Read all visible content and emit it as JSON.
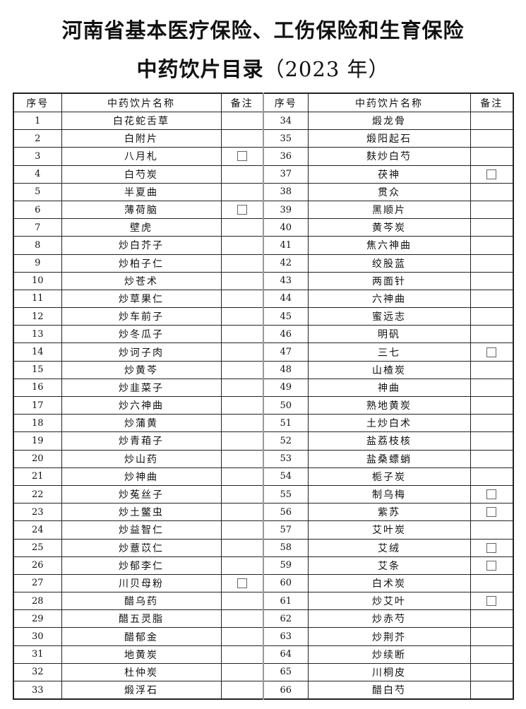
{
  "title": {
    "line1": "河南省基本医疗保险、工伤保险和生育保险",
    "line2": "中药饮片目录",
    "year": "（2023 年）"
  },
  "headers": {
    "no": "序号",
    "name": "中药饮片名称",
    "remark": "备注"
  },
  "left_rows": [
    {
      "no": "1",
      "name": "白花蛇舌草",
      "checkbox": false
    },
    {
      "no": "2",
      "name": "白附片",
      "checkbox": false
    },
    {
      "no": "3",
      "name": "八月札",
      "checkbox": true
    },
    {
      "no": "4",
      "name": "白芍炭",
      "checkbox": false
    },
    {
      "no": "5",
      "name": "半夏曲",
      "checkbox": false
    },
    {
      "no": "6",
      "name": "薄荷脑",
      "checkbox": true
    },
    {
      "no": "7",
      "name": "壁虎",
      "checkbox": false
    },
    {
      "no": "8",
      "name": "炒白芥子",
      "checkbox": false
    },
    {
      "no": "9",
      "name": "炒柏子仁",
      "checkbox": false
    },
    {
      "no": "10",
      "name": "炒苍术",
      "checkbox": false
    },
    {
      "no": "11",
      "name": "炒草果仁",
      "checkbox": false
    },
    {
      "no": "12",
      "name": "炒车前子",
      "checkbox": false
    },
    {
      "no": "13",
      "name": "炒冬瓜子",
      "checkbox": false
    },
    {
      "no": "14",
      "name": "炒诃子肉",
      "checkbox": false
    },
    {
      "no": "15",
      "name": "炒黄芩",
      "checkbox": false
    },
    {
      "no": "16",
      "name": "炒韭菜子",
      "checkbox": false
    },
    {
      "no": "17",
      "name": "炒六神曲",
      "checkbox": false
    },
    {
      "no": "18",
      "name": "炒蒲黄",
      "checkbox": false
    },
    {
      "no": "19",
      "name": "炒青葙子",
      "checkbox": false
    },
    {
      "no": "20",
      "name": "炒山药",
      "checkbox": false
    },
    {
      "no": "21",
      "name": "炒神曲",
      "checkbox": false
    },
    {
      "no": "22",
      "name": "炒菟丝子",
      "checkbox": false
    },
    {
      "no": "23",
      "name": "炒土鳖虫",
      "checkbox": false
    },
    {
      "no": "24",
      "name": "炒益智仁",
      "checkbox": false
    },
    {
      "no": "25",
      "name": "炒薏苡仁",
      "checkbox": false
    },
    {
      "no": "26",
      "name": "炒郁李仁",
      "checkbox": false
    },
    {
      "no": "27",
      "name": "川贝母粉",
      "checkbox": true
    },
    {
      "no": "28",
      "name": "醋乌药",
      "checkbox": false
    },
    {
      "no": "29",
      "name": "醋五灵脂",
      "checkbox": false
    },
    {
      "no": "30",
      "name": "醋郁金",
      "checkbox": false
    },
    {
      "no": "31",
      "name": "地黄炭",
      "checkbox": false
    },
    {
      "no": "32",
      "name": "杜仲炭",
      "checkbox": false
    },
    {
      "no": "33",
      "name": "煅浮石",
      "checkbox": false
    }
  ],
  "right_rows": [
    {
      "no": "34",
      "name": "煅龙骨",
      "checkbox": false
    },
    {
      "no": "35",
      "name": "煅阳起石",
      "checkbox": false
    },
    {
      "no": "36",
      "name": "麸炒白芍",
      "checkbox": false
    },
    {
      "no": "37",
      "name": "茯神",
      "checkbox": true
    },
    {
      "no": "38",
      "name": "贯众",
      "checkbox": false
    },
    {
      "no": "39",
      "name": "黑顺片",
      "checkbox": false
    },
    {
      "no": "40",
      "name": "黄芩炭",
      "checkbox": false
    },
    {
      "no": "41",
      "name": "焦六神曲",
      "checkbox": false
    },
    {
      "no": "42",
      "name": "绞股蓝",
      "checkbox": false
    },
    {
      "no": "43",
      "name": "两面针",
      "checkbox": false
    },
    {
      "no": "44",
      "name": "六神曲",
      "checkbox": false
    },
    {
      "no": "45",
      "name": "蜜远志",
      "checkbox": false
    },
    {
      "no": "46",
      "name": "明矾",
      "checkbox": false
    },
    {
      "no": "47",
      "name": "三七",
      "checkbox": true
    },
    {
      "no": "48",
      "name": "山楂炭",
      "checkbox": false
    },
    {
      "no": "49",
      "name": "神曲",
      "checkbox": false
    },
    {
      "no": "50",
      "name": "熟地黄炭",
      "checkbox": false
    },
    {
      "no": "51",
      "name": "土炒白术",
      "checkbox": false
    },
    {
      "no": "52",
      "name": "盐荔枝核",
      "checkbox": false
    },
    {
      "no": "53",
      "name": "盐桑螵蛸",
      "checkbox": false
    },
    {
      "no": "54",
      "name": "栀子炭",
      "checkbox": false
    },
    {
      "no": "55",
      "name": "制乌梅",
      "checkbox": true
    },
    {
      "no": "56",
      "name": "紫苏",
      "checkbox": true
    },
    {
      "no": "57",
      "name": "艾叶炭",
      "checkbox": false
    },
    {
      "no": "58",
      "name": "艾绒",
      "checkbox": true
    },
    {
      "no": "59",
      "name": "艾条",
      "checkbox": true
    },
    {
      "no": "60",
      "name": "白术炭",
      "checkbox": false
    },
    {
      "no": "61",
      "name": "炒艾叶",
      "checkbox": true
    },
    {
      "no": "62",
      "name": "炒赤芍",
      "checkbox": false
    },
    {
      "no": "63",
      "name": "炒荆芥",
      "checkbox": false
    },
    {
      "no": "64",
      "name": "炒续断",
      "checkbox": false
    },
    {
      "no": "65",
      "name": "川桐皮",
      "checkbox": false
    },
    {
      "no": "66",
      "name": "醋白芍",
      "checkbox": false
    }
  ]
}
